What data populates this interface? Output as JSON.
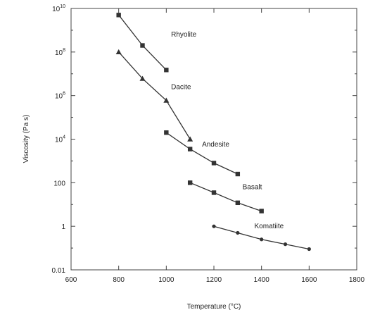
{
  "chart_data": {
    "type": "line",
    "title": "",
    "xlabel": "Temperature (°C)",
    "ylabel": "Viscosity (Pa s)",
    "xlim": [
      600,
      1800
    ],
    "ylim": [
      0.01,
      10000000000
    ],
    "yscale": "log",
    "grid": false,
    "x_ticks": [
      {
        "value": 600,
        "label": "600"
      },
      {
        "value": 800,
        "label": "800"
      },
      {
        "value": 1000,
        "label": "1000"
      },
      {
        "value": 1200,
        "label": "1200"
      },
      {
        "value": 1400,
        "label": "1400"
      },
      {
        "value": 1600,
        "label": "1600"
      },
      {
        "value": 1800,
        "label": "1800"
      }
    ],
    "y_ticks": [
      {
        "value": 0.01,
        "base": "0.01",
        "exp": ""
      },
      {
        "value": 1,
        "base": "1",
        "exp": ""
      },
      {
        "value": 100,
        "base": "100",
        "exp": ""
      },
      {
        "value": 10000,
        "base": "10",
        "exp": "4"
      },
      {
        "value": 1000000,
        "base": "10",
        "exp": "6"
      },
      {
        "value": 100000000,
        "base": "10",
        "exp": "8"
      },
      {
        "value": 10000000000,
        "base": "10",
        "exp": "10"
      }
    ],
    "series": [
      {
        "name": "Rhyolite",
        "marker": "square",
        "points": [
          [
            800,
            5000000000
          ],
          [
            900,
            200000000
          ],
          [
            1000,
            15000000
          ]
        ]
      },
      {
        "name": "Dacite",
        "marker": "triangle",
        "points": [
          [
            800,
            100000000
          ],
          [
            900,
            6000000
          ],
          [
            1000,
            600000
          ],
          [
            1100,
            10000
          ]
        ]
      },
      {
        "name": "Andesite",
        "marker": "square",
        "points": [
          [
            1000,
            20000
          ],
          [
            1100,
            3500
          ],
          [
            1200,
            800
          ],
          [
            1300,
            250
          ]
        ]
      },
      {
        "name": "Basalt",
        "marker": "square",
        "points": [
          [
            1100,
            100
          ],
          [
            1200,
            35
          ],
          [
            1300,
            12
          ],
          [
            1400,
            5
          ]
        ]
      },
      {
        "name": "Komatiite",
        "marker": "circle",
        "points": [
          [
            1200,
            1
          ],
          [
            1300,
            0.5
          ],
          [
            1400,
            0.25
          ],
          [
            1500,
            0.15
          ],
          [
            1600,
            0.09
          ]
        ]
      }
    ],
    "labels": [
      {
        "series": "Rhyolite",
        "text": "Rhyolite",
        "at": [
          1020,
          500000000
        ]
      },
      {
        "series": "Dacite",
        "text": "Dacite",
        "at": [
          1020,
          2000000
        ]
      },
      {
        "series": "Andesite",
        "text": "Andesite",
        "at": [
          1150,
          4500
        ]
      },
      {
        "series": "Basalt",
        "text": "Basalt",
        "at": [
          1320,
          50
        ]
      },
      {
        "series": "Komatiite",
        "text": "Komatiite",
        "at": [
          1370,
          0.8
        ]
      }
    ]
  }
}
